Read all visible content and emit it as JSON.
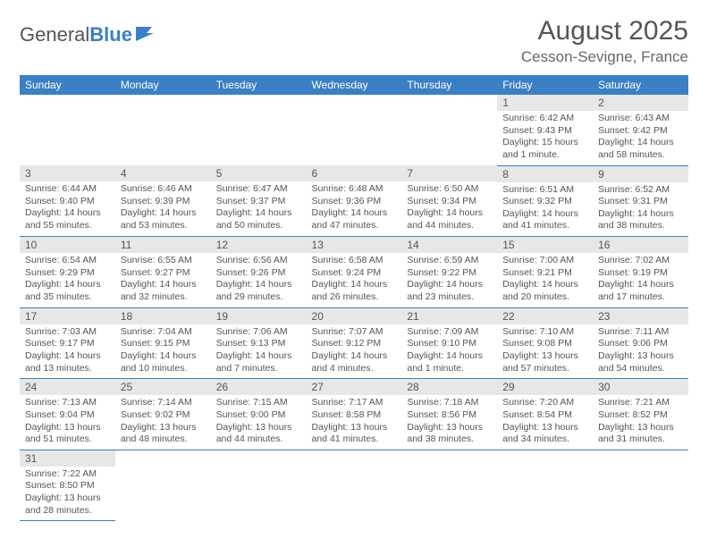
{
  "logo": {
    "text1": "General",
    "text2": "Blue"
  },
  "title": "August 2025",
  "location": "Cesson-Sevigne, France",
  "colors": {
    "brand": "#3b7fc4",
    "header_bg": "#3b7fc4",
    "daynum_bg": "#e7e7e7",
    "text": "#555555",
    "background": "#ffffff"
  },
  "weekdays": [
    "Sunday",
    "Monday",
    "Tuesday",
    "Wednesday",
    "Thursday",
    "Friday",
    "Saturday"
  ],
  "weeks": [
    [
      null,
      null,
      null,
      null,
      null,
      {
        "n": "1",
        "sr": "6:42 AM",
        "ss": "9:43 PM",
        "dl": "15 hours and 1 minute."
      },
      {
        "n": "2",
        "sr": "6:43 AM",
        "ss": "9:42 PM",
        "dl": "14 hours and 58 minutes."
      }
    ],
    [
      {
        "n": "3",
        "sr": "6:44 AM",
        "ss": "9:40 PM",
        "dl": "14 hours and 55 minutes."
      },
      {
        "n": "4",
        "sr": "6:46 AM",
        "ss": "9:39 PM",
        "dl": "14 hours and 53 minutes."
      },
      {
        "n": "5",
        "sr": "6:47 AM",
        "ss": "9:37 PM",
        "dl": "14 hours and 50 minutes."
      },
      {
        "n": "6",
        "sr": "6:48 AM",
        "ss": "9:36 PM",
        "dl": "14 hours and 47 minutes."
      },
      {
        "n": "7",
        "sr": "6:50 AM",
        "ss": "9:34 PM",
        "dl": "14 hours and 44 minutes."
      },
      {
        "n": "8",
        "sr": "6:51 AM",
        "ss": "9:32 PM",
        "dl": "14 hours and 41 minutes."
      },
      {
        "n": "9",
        "sr": "6:52 AM",
        "ss": "9:31 PM",
        "dl": "14 hours and 38 minutes."
      }
    ],
    [
      {
        "n": "10",
        "sr": "6:54 AM",
        "ss": "9:29 PM",
        "dl": "14 hours and 35 minutes."
      },
      {
        "n": "11",
        "sr": "6:55 AM",
        "ss": "9:27 PM",
        "dl": "14 hours and 32 minutes."
      },
      {
        "n": "12",
        "sr": "6:56 AM",
        "ss": "9:26 PM",
        "dl": "14 hours and 29 minutes."
      },
      {
        "n": "13",
        "sr": "6:58 AM",
        "ss": "9:24 PM",
        "dl": "14 hours and 26 minutes."
      },
      {
        "n": "14",
        "sr": "6:59 AM",
        "ss": "9:22 PM",
        "dl": "14 hours and 23 minutes."
      },
      {
        "n": "15",
        "sr": "7:00 AM",
        "ss": "9:21 PM",
        "dl": "14 hours and 20 minutes."
      },
      {
        "n": "16",
        "sr": "7:02 AM",
        "ss": "9:19 PM",
        "dl": "14 hours and 17 minutes."
      }
    ],
    [
      {
        "n": "17",
        "sr": "7:03 AM",
        "ss": "9:17 PM",
        "dl": "14 hours and 13 minutes."
      },
      {
        "n": "18",
        "sr": "7:04 AM",
        "ss": "9:15 PM",
        "dl": "14 hours and 10 minutes."
      },
      {
        "n": "19",
        "sr": "7:06 AM",
        "ss": "9:13 PM",
        "dl": "14 hours and 7 minutes."
      },
      {
        "n": "20",
        "sr": "7:07 AM",
        "ss": "9:12 PM",
        "dl": "14 hours and 4 minutes."
      },
      {
        "n": "21",
        "sr": "7:09 AM",
        "ss": "9:10 PM",
        "dl": "14 hours and 1 minute."
      },
      {
        "n": "22",
        "sr": "7:10 AM",
        "ss": "9:08 PM",
        "dl": "13 hours and 57 minutes."
      },
      {
        "n": "23",
        "sr": "7:11 AM",
        "ss": "9:06 PM",
        "dl": "13 hours and 54 minutes."
      }
    ],
    [
      {
        "n": "24",
        "sr": "7:13 AM",
        "ss": "9:04 PM",
        "dl": "13 hours and 51 minutes."
      },
      {
        "n": "25",
        "sr": "7:14 AM",
        "ss": "9:02 PM",
        "dl": "13 hours and 48 minutes."
      },
      {
        "n": "26",
        "sr": "7:15 AM",
        "ss": "9:00 PM",
        "dl": "13 hours and 44 minutes."
      },
      {
        "n": "27",
        "sr": "7:17 AM",
        "ss": "8:58 PM",
        "dl": "13 hours and 41 minutes."
      },
      {
        "n": "28",
        "sr": "7:18 AM",
        "ss": "8:56 PM",
        "dl": "13 hours and 38 minutes."
      },
      {
        "n": "29",
        "sr": "7:20 AM",
        "ss": "8:54 PM",
        "dl": "13 hours and 34 minutes."
      },
      {
        "n": "30",
        "sr": "7:21 AM",
        "ss": "8:52 PM",
        "dl": "13 hours and 31 minutes."
      }
    ],
    [
      {
        "n": "31",
        "sr": "7:22 AM",
        "ss": "8:50 PM",
        "dl": "13 hours and 28 minutes."
      },
      null,
      null,
      null,
      null,
      null,
      null
    ]
  ],
  "labels": {
    "sunrise": "Sunrise:",
    "sunset": "Sunset:",
    "daylight": "Daylight:"
  }
}
